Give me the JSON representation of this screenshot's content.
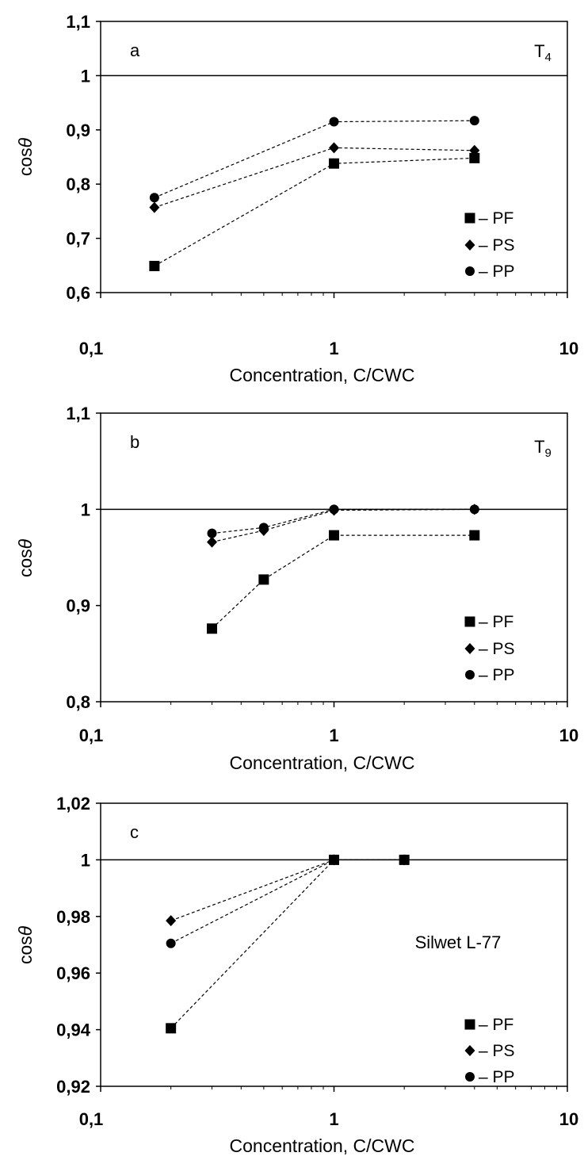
{
  "chart_data": [
    {
      "type": "scatter",
      "panel_label": "a",
      "annotation": "T",
      "annotation_sub": "4",
      "xlabel": "Concentration, C/CWC",
      "ylabel": "cos",
      "ylabel_symbol": "θ",
      "x_scale": "log",
      "xlim": [
        0.1,
        10
      ],
      "ylim": [
        0.6,
        1.1
      ],
      "x_ticks": [
        0.1,
        1,
        10
      ],
      "x_tick_labels": [
        "0,1",
        "1",
        "10"
      ],
      "y_ticks": [
        0.6,
        0.7,
        0.8,
        0.9,
        1.0,
        1.1
      ],
      "y_tick_labels": [
        "0,6",
        "0,7",
        "0,8",
        "0,9",
        "1",
        "1,1"
      ],
      "reference_line_y": 1.0,
      "grid": false,
      "legend_position": "bottom-right",
      "series": [
        {
          "name": "PF",
          "legend_label": "– PF",
          "marker": "square",
          "x": [
            0.17,
            1,
            4
          ],
          "y": [
            0.649,
            0.838,
            0.848
          ]
        },
        {
          "name": "PS",
          "legend_label": "– PS",
          "marker": "diamond",
          "x": [
            0.17,
            1,
            4
          ],
          "y": [
            0.757,
            0.867,
            0.862
          ]
        },
        {
          "name": "PP",
          "legend_label": "– PP",
          "marker": "circle",
          "x": [
            0.17,
            1,
            4
          ],
          "y": [
            0.775,
            0.915,
            0.917
          ]
        }
      ]
    },
    {
      "type": "scatter",
      "panel_label": "b",
      "annotation": "T",
      "annotation_sub": "9",
      "xlabel": "Concentration, C/CWC",
      "ylabel": "cos",
      "ylabel_symbol": "θ",
      "x_scale": "log",
      "xlim": [
        0.1,
        10
      ],
      "ylim": [
        0.8,
        1.1
      ],
      "x_ticks": [
        0.1,
        1,
        10
      ],
      "x_tick_labels": [
        "0,1",
        "1",
        "10"
      ],
      "y_ticks": [
        0.8,
        0.9,
        1.0,
        1.1
      ],
      "y_tick_labels": [
        "0,8",
        "0,9",
        "1",
        "1,1"
      ],
      "reference_line_y": 1.0,
      "grid": false,
      "legend_position": "bottom-right",
      "series": [
        {
          "name": "PF",
          "legend_label": "– PF",
          "marker": "square",
          "x": [
            0.3,
            0.5,
            1,
            4
          ],
          "y": [
            0.876,
            0.927,
            0.973,
            0.973
          ]
        },
        {
          "name": "PS",
          "legend_label": "– PS",
          "marker": "diamond",
          "x": [
            0.3,
            0.5,
            1,
            4
          ],
          "y": [
            0.966,
            0.978,
            0.999,
            1.0
          ]
        },
        {
          "name": "PP",
          "legend_label": "– PP",
          "marker": "circle",
          "x": [
            0.3,
            0.5,
            1,
            4
          ],
          "y": [
            0.975,
            0.981,
            1.0,
            1.0
          ]
        }
      ]
    },
    {
      "type": "scatter",
      "panel_label": "c",
      "annotation": "Silwet L-77",
      "annotation_sub": "",
      "xlabel": "Concentration, C/CWC",
      "ylabel": "cos",
      "ylabel_symbol": "θ",
      "x_scale": "log",
      "xlim": [
        0.1,
        10
      ],
      "ylim": [
        0.92,
        1.02
      ],
      "x_ticks": [
        0.1,
        1,
        10
      ],
      "x_tick_labels": [
        "0,1",
        "1",
        "10"
      ],
      "y_ticks": [
        0.92,
        0.94,
        0.96,
        0.98,
        1.0,
        1.02
      ],
      "y_tick_labels": [
        "0,92",
        "0,94",
        "0,96",
        "0,98",
        "1",
        "1,02"
      ],
      "reference_line_y": 1.0,
      "grid": false,
      "legend_position": "bottom-right",
      "series": [
        {
          "name": "PF",
          "legend_label": "– PF",
          "marker": "square",
          "x": [
            0.2,
            1,
            2
          ],
          "y": [
            0.9405,
            1.0,
            1.0
          ]
        },
        {
          "name": "PS",
          "legend_label": "– PS",
          "marker": "diamond",
          "x": [
            0.2,
            1,
            2
          ],
          "y": [
            0.9785,
            1.0,
            1.0
          ]
        },
        {
          "name": "PP",
          "legend_label": "– PP",
          "marker": "circle",
          "x": [
            0.2,
            1,
            2
          ],
          "y": [
            0.9705,
            1.0,
            1.0
          ]
        }
      ]
    }
  ]
}
